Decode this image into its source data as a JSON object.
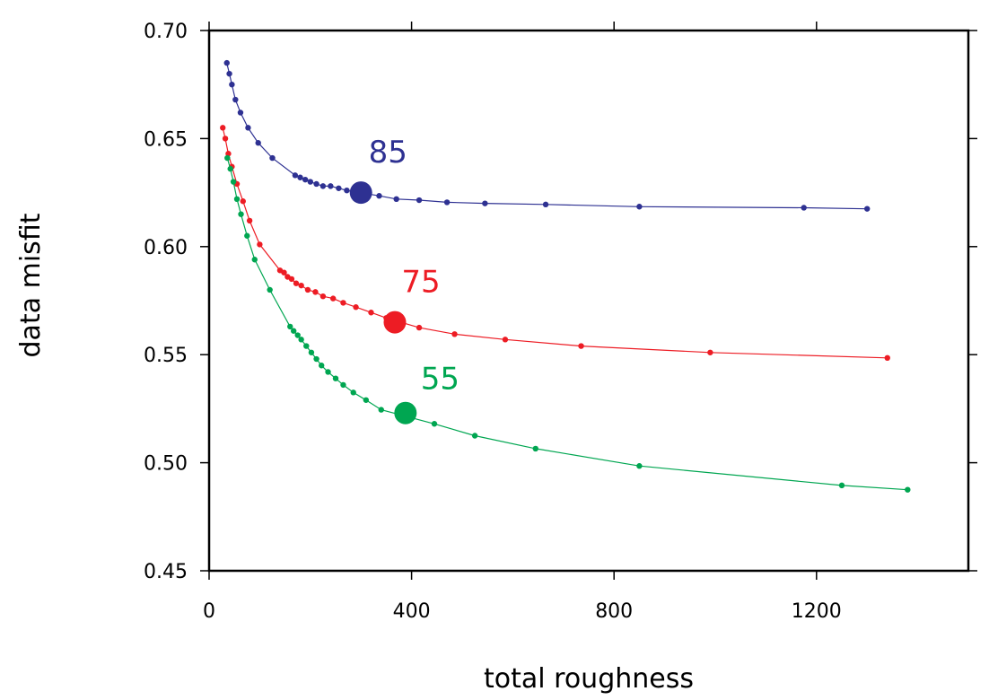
{
  "chart_data": {
    "type": "line",
    "title": "",
    "xlabel": "total roughness",
    "ylabel": "data misfit",
    "xlim": [
      0,
      1500
    ],
    "ylim": [
      0.45,
      0.7
    ],
    "xticks": [
      0,
      400,
      800,
      1200
    ],
    "xtick_labels": [
      "0",
      "400",
      "800",
      "1200"
    ],
    "yticks": [
      0.45,
      0.5,
      0.55,
      0.6,
      0.65,
      0.7
    ],
    "ytick_labels": [
      "0.45",
      "0.50",
      "0.55",
      "0.60",
      "0.65",
      "0.70"
    ],
    "grid": false,
    "legend": "none",
    "series": [
      {
        "name": "85",
        "color": "#2e3192",
        "points": [
          [
            35,
            0.685
          ],
          [
            40,
            0.68
          ],
          [
            45,
            0.675
          ],
          [
            52,
            0.668
          ],
          [
            62,
            0.662
          ],
          [
            77,
            0.655
          ],
          [
            97,
            0.648
          ],
          [
            125,
            0.641
          ],
          [
            170,
            0.633
          ],
          [
            180,
            0.632
          ],
          [
            190,
            0.631
          ],
          [
            200,
            0.63
          ],
          [
            212,
            0.629
          ],
          [
            225,
            0.628
          ],
          [
            240,
            0.628
          ],
          [
            256,
            0.627
          ],
          [
            272,
            0.626
          ],
          [
            336,
            0.6235
          ],
          [
            370,
            0.622
          ],
          [
            415,
            0.6215
          ],
          [
            470,
            0.6205
          ],
          [
            545,
            0.62
          ],
          [
            665,
            0.6195
          ],
          [
            850,
            0.6185
          ],
          [
            1175,
            0.618
          ],
          [
            1300,
            0.6175
          ]
        ],
        "highlight": [
          300,
          0.625
        ]
      },
      {
        "name": "75",
        "color": "#ed1c24",
        "points": [
          [
            27,
            0.655
          ],
          [
            32,
            0.65
          ],
          [
            38,
            0.643
          ],
          [
            45,
            0.637
          ],
          [
            55,
            0.629
          ],
          [
            67,
            0.621
          ],
          [
            80,
            0.612
          ],
          [
            100,
            0.601
          ],
          [
            140,
            0.589
          ],
          [
            148,
            0.588
          ],
          [
            155,
            0.586
          ],
          [
            163,
            0.585
          ],
          [
            172,
            0.583
          ],
          [
            182,
            0.582
          ],
          [
            195,
            0.58
          ],
          [
            210,
            0.579
          ],
          [
            225,
            0.577
          ],
          [
            245,
            0.576
          ],
          [
            265,
            0.574
          ],
          [
            290,
            0.572
          ],
          [
            320,
            0.5695
          ],
          [
            350,
            0.567
          ],
          [
            415,
            0.5625
          ],
          [
            485,
            0.5595
          ],
          [
            585,
            0.557
          ],
          [
            735,
            0.554
          ],
          [
            990,
            0.551
          ],
          [
            1340,
            0.5485
          ]
        ],
        "highlight": [
          367,
          0.565
        ]
      },
      {
        "name": "55",
        "color": "#00a651",
        "points": [
          [
            36,
            0.641
          ],
          [
            42,
            0.636
          ],
          [
            48,
            0.63
          ],
          [
            55,
            0.622
          ],
          [
            63,
            0.615
          ],
          [
            75,
            0.605
          ],
          [
            90,
            0.594
          ],
          [
            120,
            0.58
          ],
          [
            160,
            0.563
          ],
          [
            167,
            0.561
          ],
          [
            175,
            0.559
          ],
          [
            182,
            0.557
          ],
          [
            192,
            0.554
          ],
          [
            202,
            0.551
          ],
          [
            212,
            0.548
          ],
          [
            222,
            0.545
          ],
          [
            235,
            0.542
          ],
          [
            250,
            0.539
          ],
          [
            265,
            0.536
          ],
          [
            285,
            0.5325
          ],
          [
            310,
            0.529
          ],
          [
            340,
            0.5245
          ],
          [
            445,
            0.518
          ],
          [
            525,
            0.5125
          ],
          [
            645,
            0.5065
          ],
          [
            850,
            0.4985
          ],
          [
            1250,
            0.4895
          ],
          [
            1380,
            0.4875
          ]
        ],
        "highlight": [
          388,
          0.523
        ]
      }
    ],
    "annotations": [
      {
        "text": "85",
        "x": 315,
        "y": 0.639,
        "color": "#2e3192"
      },
      {
        "text": "75",
        "x": 380,
        "y": 0.579,
        "color": "#ed1c24"
      },
      {
        "text": "55",
        "x": 418,
        "y": 0.534,
        "color": "#00a651"
      }
    ]
  }
}
